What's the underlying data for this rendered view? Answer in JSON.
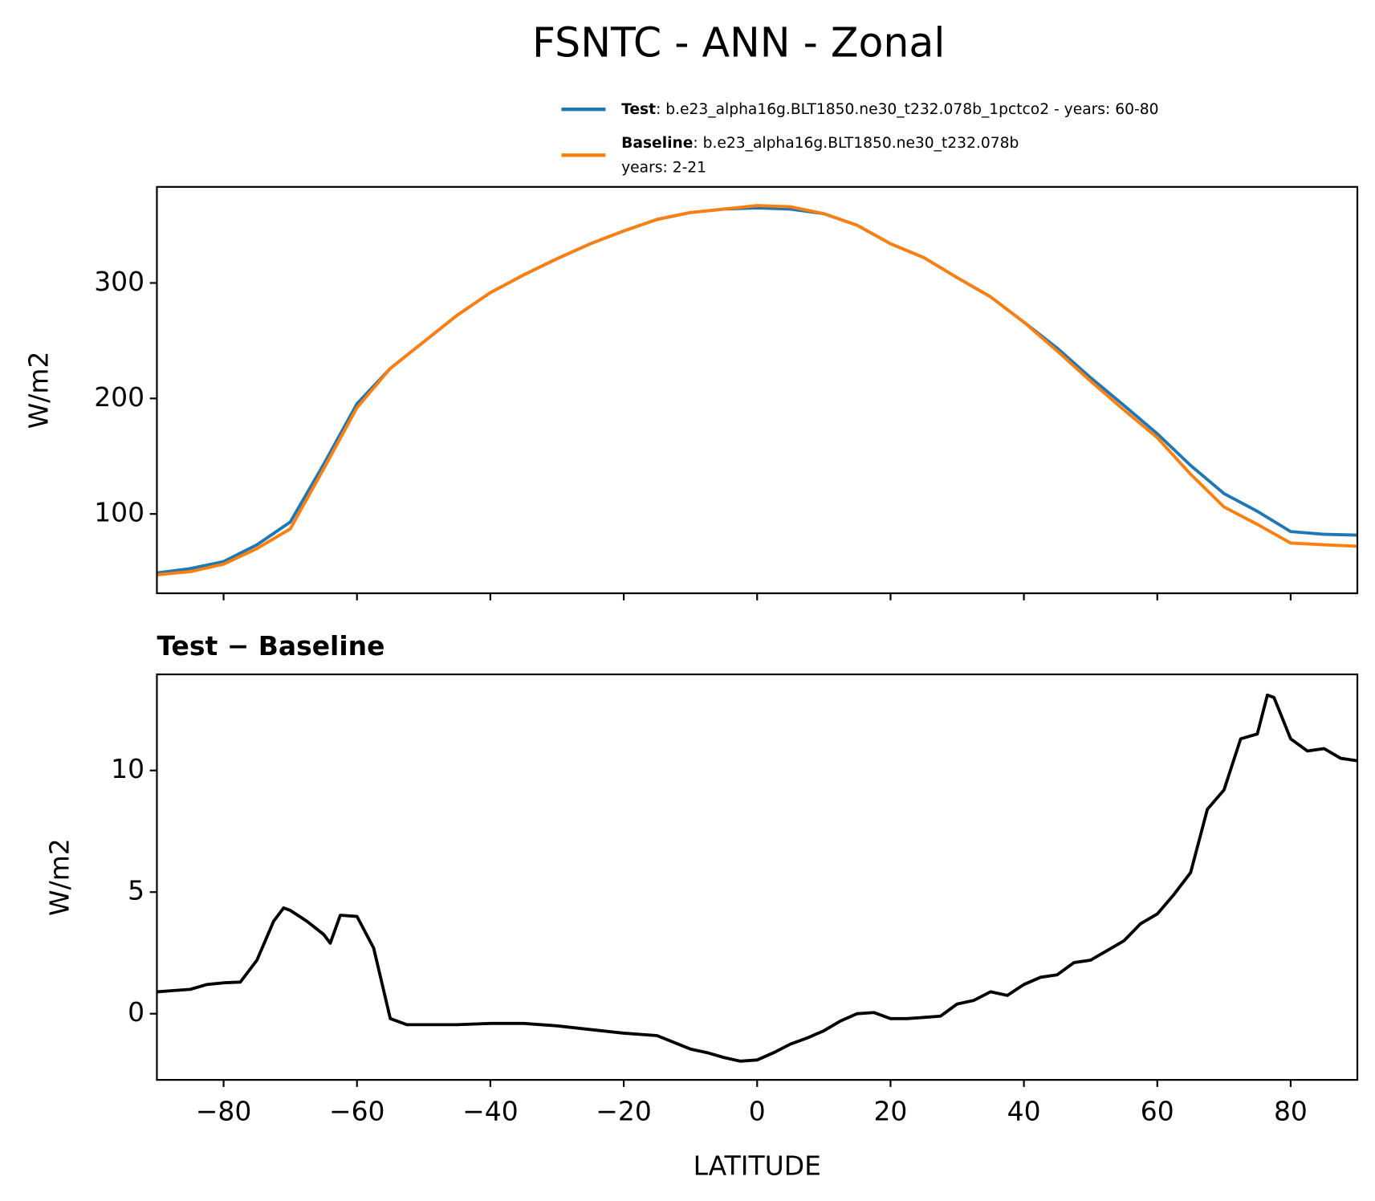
{
  "chart_data": [
    {
      "type": "line",
      "title": "FSNTC - ANN - Zonal",
      "ylabel": "W/m2",
      "x": [
        -90,
        -85,
        -80,
        -75,
        -70,
        -65,
        -60,
        -55,
        -50,
        -45,
        -40,
        -35,
        -30,
        -25,
        -20,
        -15,
        -10,
        -5,
        0,
        5,
        10,
        15,
        20,
        25,
        30,
        35,
        40,
        45,
        50,
        55,
        60,
        65,
        70,
        75,
        80,
        85,
        90
      ],
      "series": [
        {
          "name": "Test",
          "label_lines": [
            ": b.e23_alpha16g.BLT1850.ne30_t232.078b_1pctco2 - years: 60-80"
          ],
          "color": "#1f77b4",
          "values": [
            48.9,
            52.7,
            58.8,
            73.3,
            93,
            143,
            195.4,
            226,
            249,
            272,
            291.6,
            307,
            321,
            334,
            345,
            355,
            361,
            364,
            365,
            364,
            360,
            350,
            334,
            322,
            304.6,
            288,
            266,
            243.5,
            218,
            194,
            169.5,
            142,
            117.6,
            102.3,
            84.7,
            82.4,
            81.7
          ]
        },
        {
          "name": "Baseline",
          "label_lines": [
            ": b.e23_alpha16g.BLT1850.ne30_t232.078b",
            "years: 2-21"
          ],
          "color": "#ff7f0e",
          "values": [
            47.3,
            50,
            56.5,
            70,
            87,
            139,
            192,
            226,
            249,
            272,
            291.6,
            307,
            321,
            334,
            345,
            355,
            361,
            364,
            367,
            366,
            360,
            350,
            334,
            322,
            304.6,
            288,
            266,
            241,
            215,
            190,
            166,
            134.4,
            106,
            91,
            74.8,
            73.3,
            72
          ]
        }
      ],
      "xlim": [
        -90,
        90
      ],
      "xticks": [
        -80,
        -60,
        -40,
        -20,
        0,
        20,
        40,
        60,
        80
      ],
      "ylim": [
        31.3,
        383.2
      ],
      "yticks": [
        100,
        200,
        300
      ]
    },
    {
      "type": "line",
      "title": "Test − Baseline",
      "ylabel": "W/m2",
      "xlabel": "LATITUDE",
      "x": [
        -90,
        -87.5,
        -85,
        -82.5,
        -80,
        -77.5,
        -75,
        -72.5,
        -71,
        -70,
        -67.5,
        -65,
        -64,
        -62.5,
        -60,
        -57.5,
        -55,
        -52.5,
        -50,
        -45,
        -40,
        -35,
        -30,
        -25,
        -20,
        -15,
        -10,
        -7.5,
        -5,
        -2.5,
        0,
        2.5,
        5,
        7.5,
        10,
        12.5,
        15,
        17.5,
        20,
        22.5,
        25,
        27.5,
        30,
        32.5,
        35,
        37.5,
        40,
        42.5,
        45,
        47.5,
        50,
        52.5,
        55,
        57.5,
        60,
        62.5,
        65,
        67.5,
        70,
        72.5,
        75,
        76.5,
        77.5,
        80,
        82.5,
        85,
        87.5,
        90
      ],
      "series": [
        {
          "color": "#000000",
          "values": [
            0.9,
            0.95,
            1.0,
            1.2,
            1.27,
            1.3,
            2.2,
            3.8,
            4.35,
            4.25,
            3.8,
            3.26,
            2.9,
            4.05,
            4.0,
            2.7,
            -0.2,
            -0.45,
            -0.45,
            -0.45,
            -0.4,
            -0.4,
            -0.5,
            -0.65,
            -0.8,
            -0.9,
            -1.45,
            -1.6,
            -1.8,
            -1.95,
            -1.9,
            -1.6,
            -1.25,
            -1.0,
            -0.7,
            -0.3,
            0.0,
            0.05,
            -0.2,
            -0.2,
            -0.15,
            -0.1,
            0.4,
            0.55,
            0.9,
            0.75,
            1.2,
            1.5,
            1.6,
            2.1,
            2.2,
            2.6,
            3.0,
            3.7,
            4.1,
            4.9,
            5.8,
            8.4,
            9.2,
            11.3,
            11.5,
            13.1,
            13.0,
            11.3,
            10.8,
            10.9,
            10.5,
            10.4
          ]
        }
      ],
      "xlim": [
        -90,
        90
      ],
      "xticks": [
        {
          "value": -80,
          "label": "−80"
        },
        {
          "value": -60,
          "label": "−60"
        },
        {
          "value": -40,
          "label": "−40"
        },
        {
          "value": -20,
          "label": "−20"
        },
        0,
        20,
        40,
        60,
        80
      ],
      "ylim": [
        -2.72,
        13.95
      ],
      "yticks": [
        0,
        5,
        10
      ]
    }
  ]
}
